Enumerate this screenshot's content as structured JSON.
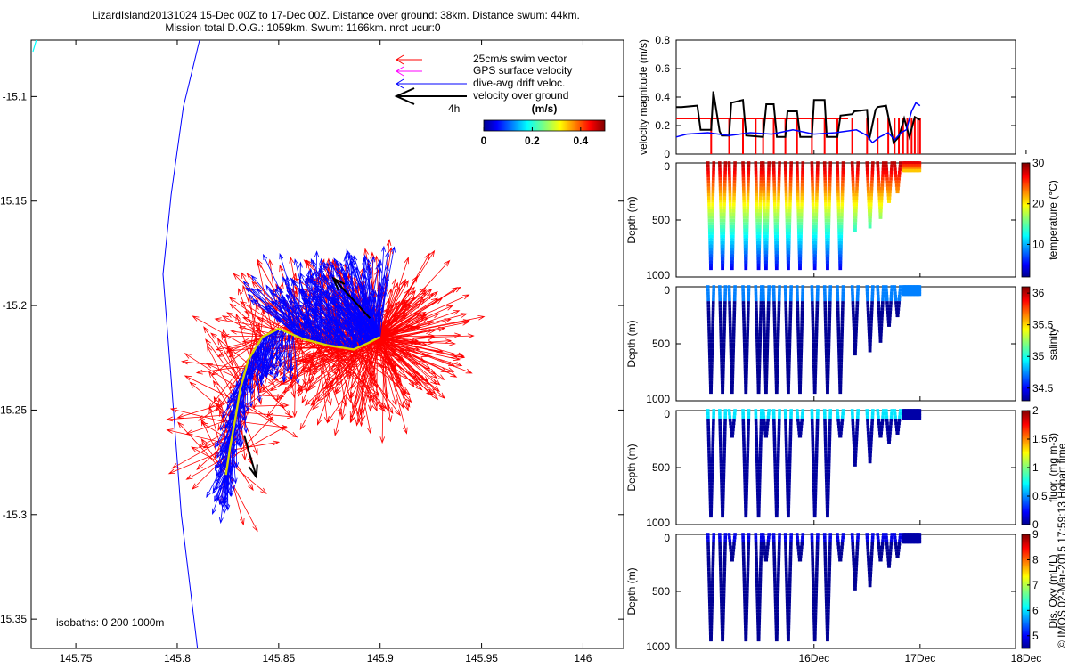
{
  "title": {
    "line1": "LizardIsland20131024 15-Dec 00Z to 17-Dec 00Z. Distance over ground: 38km. Distance swum: 44km.",
    "line2": "Mission total D.O.G.: 1059km. Swum: 1166km. nrot ucur:0"
  },
  "chart_data": [
    {
      "id": "track_map",
      "type": "line",
      "x_ticks": [
        "145.75",
        "145.8",
        "145.85",
        "145.9",
        "145.95",
        "146"
      ],
      "y_ticks": [
        "-15.1",
        "-15.15",
        "-15.2",
        "-15.25",
        "-15.3",
        "-15.35"
      ],
      "xlim": [
        145.728,
        146.02
      ],
      "ylim": [
        -15.364,
        -15.073
      ],
      "isobath_label": "isobaths: 0   200  1000m",
      "isobath_1000m": {
        "lon": [
          145.811,
          145.808,
          145.803,
          145.797,
          145.793,
          145.797,
          145.802,
          145.81
        ],
        "lat": [
          -15.073,
          -15.085,
          -15.105,
          -15.147,
          -15.185,
          -15.235,
          -15.3,
          -15.364
        ]
      },
      "glider_track": {
        "lon": [
          145.824,
          145.826,
          145.829,
          145.831,
          145.835,
          145.842,
          145.85,
          145.862,
          145.874,
          145.887,
          145.894,
          145.898,
          145.9
        ],
        "lat": [
          -15.281,
          -15.268,
          -15.252,
          -15.24,
          -15.226,
          -15.215,
          -15.211,
          -15.216,
          -15.219,
          -15.221,
          -15.218,
          -15.216,
          -15.215
        ]
      },
      "velocity_over_ground": [
        {
          "lon": [
            145.833,
            145.839
          ],
          "lat": [
            -15.262,
            -15.282
          ]
        },
        {
          "lon": [
            145.895,
            145.877
          ],
          "lat": [
            -15.206,
            -15.187
          ]
        }
      ],
      "legend": [
        {
          "label": "25cm/s swim vector",
          "color": "#ff0000"
        },
        {
          "label": "GPS surface velocity",
          "color": "#ff00ff"
        },
        {
          "label": "dive-avg drift veloc.",
          "color": "#0000ff"
        },
        {
          "label": "velocity over ground",
          "color": "#000000"
        }
      ],
      "scale_label": "4h",
      "colorbar": {
        "label": "(m/s)",
        "ticks": [
          "0",
          "0.2",
          "0.4"
        ],
        "range": [
          0,
          0.5
        ]
      }
    },
    {
      "id": "velocity_magnitude",
      "type": "line",
      "ylabel": "velocity magnitude (m/s)",
      "y_ticks": [
        "0",
        "0.2",
        "0.4",
        "0.6",
        "0.8"
      ],
      "ylim": [
        0,
        0.8
      ],
      "xlim_days": [
        14.7,
        17.9
      ],
      "reference_line": 0.25,
      "series": [
        {
          "name": "over ground",
          "color": "#000000",
          "t": [
            14.7,
            14.75,
            14.9,
            14.93,
            15.03,
            15.05,
            15.11,
            15.13,
            15.2,
            15.22,
            15.33,
            15.36,
            15.52,
            15.55,
            15.62,
            15.65,
            15.73,
            15.75,
            15.84,
            15.87,
            15.98,
            16.0,
            16.1,
            16.12,
            16.22,
            16.25,
            16.36,
            16.38,
            16.5,
            16.52,
            16.58,
            16.6,
            16.68,
            16.75,
            16.8,
            16.85,
            16.9,
            16.95,
            17.0
          ],
          "v": [
            0.33,
            0.33,
            0.34,
            0.17,
            0.17,
            0.44,
            0.16,
            0.13,
            0.13,
            0.36,
            0.38,
            0.13,
            0.12,
            0.35,
            0.35,
            0.12,
            0.12,
            0.3,
            0.3,
            0.12,
            0.12,
            0.38,
            0.38,
            0.12,
            0.12,
            0.27,
            0.28,
            0.3,
            0.31,
            0.1,
            0.31,
            0.33,
            0.34,
            0.08,
            0.12,
            0.25,
            0.12,
            0.26,
            0.24
          ]
        },
        {
          "name": "dive-avg drift",
          "color": "#0000ff",
          "t": [
            14.7,
            14.8,
            15.0,
            15.2,
            15.4,
            15.6,
            15.8,
            16.0,
            16.2,
            16.4,
            16.5,
            16.55,
            16.62,
            16.7,
            16.76,
            16.82,
            16.87,
            16.92,
            16.96,
            17.0
          ],
          "v": [
            0.12,
            0.14,
            0.15,
            0.13,
            0.15,
            0.14,
            0.17,
            0.14,
            0.15,
            0.17,
            0.13,
            0.08,
            0.12,
            0.15,
            0.1,
            0.15,
            0.17,
            0.3,
            0.36,
            0.34
          ]
        }
      ]
    },
    {
      "id": "temperature",
      "type": "scatter",
      "ylabel": "Depth (m)",
      "y_ticks": [
        "0",
        "500",
        "1000"
      ],
      "ylim": [
        0,
        1000
      ],
      "colorbar_label": "temperature (°C)",
      "colorbar_ticks": [
        "10",
        "20",
        "30"
      ],
      "clim": [
        2,
        30
      ]
    },
    {
      "id": "salinity",
      "type": "scatter",
      "ylabel": "Depth (m)",
      "y_ticks": [
        "0",
        "500",
        "1000"
      ],
      "ylim": [
        0,
        1000
      ],
      "colorbar_label": "salinity",
      "colorbar_ticks": [
        "34.5",
        "35",
        "35.5",
        "36"
      ],
      "clim": [
        34.3,
        36.1
      ]
    },
    {
      "id": "fluorescence",
      "type": "scatter",
      "ylabel": "Depth (m)",
      "y_ticks": [
        "0",
        "500",
        "1000"
      ],
      "ylim": [
        0,
        1000
      ],
      "colorbar_label": "fluor. (mg m-3)",
      "colorbar_ticks": [
        "0",
        "0.5",
        "1",
        "1.5",
        "2"
      ],
      "clim": [
        0,
        2
      ]
    },
    {
      "id": "oxygen",
      "type": "scatter",
      "ylabel": "Depth (m)",
      "y_ticks": [
        "0",
        "500",
        "1000"
      ],
      "ylim": [
        0,
        1000
      ],
      "colorbar_label": "Dis. Oxy (mL/L)",
      "colorbar_ticks": [
        "5",
        "6",
        "7",
        "8",
        "9"
      ],
      "clim": [
        4.5,
        9
      ]
    }
  ],
  "time_axis_ticks": [
    "16Dec",
    "17Dec",
    "18Dec"
  ],
  "footer_stamp": "© IMOS 02-Mar-2015 17:59:13 Hobart time"
}
